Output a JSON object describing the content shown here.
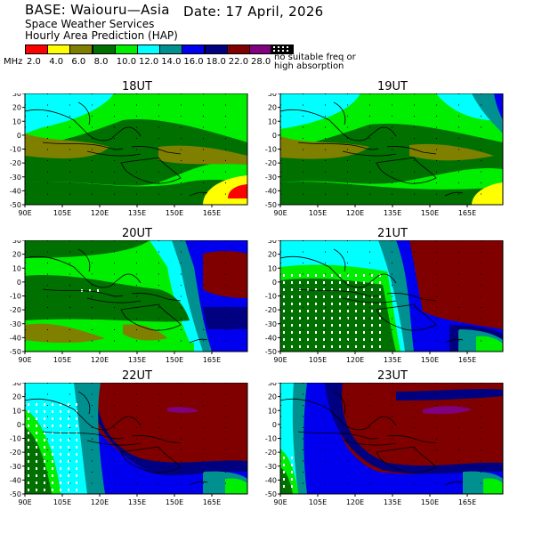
{
  "header": {
    "base": "BASE: Waiouru—Asia",
    "date": "Date:  17 April, 2026",
    "line2": "Space Weather Services",
    "line3": "Hourly Area Prediction (HAP)"
  },
  "legend": {
    "unit": "MHz",
    "labels": [
      "2.0",
      "4.0",
      "6.0",
      "8.0",
      "10.0",
      "12.0",
      "14.0",
      "16.0",
      "18.0",
      "22.0",
      "28.0"
    ],
    "colors": [
      "#ff0000",
      "#ffff00",
      "#808000",
      "#007000",
      "#00ee00",
      "#00ffff",
      "#009090",
      "#0000ee",
      "#000080",
      "#800000",
      "#800080"
    ],
    "no_suitable_line1": "no suitable freq or",
    "no_suitable_line2": "high absorption"
  },
  "axes": {
    "lat_labels": [
      "30",
      "20",
      "10",
      "0",
      "-10",
      "-20",
      "-30",
      "-40",
      "-50"
    ],
    "lon_labels": [
      "90E",
      "105E",
      "120E",
      "135E",
      "150E",
      "165E"
    ]
  },
  "panels": [
    {
      "title": "18UT"
    },
    {
      "title": "19UT"
    },
    {
      "title": "20UT"
    },
    {
      "title": "21UT"
    },
    {
      "title": "22UT"
    },
    {
      "title": "23UT"
    }
  ]
}
